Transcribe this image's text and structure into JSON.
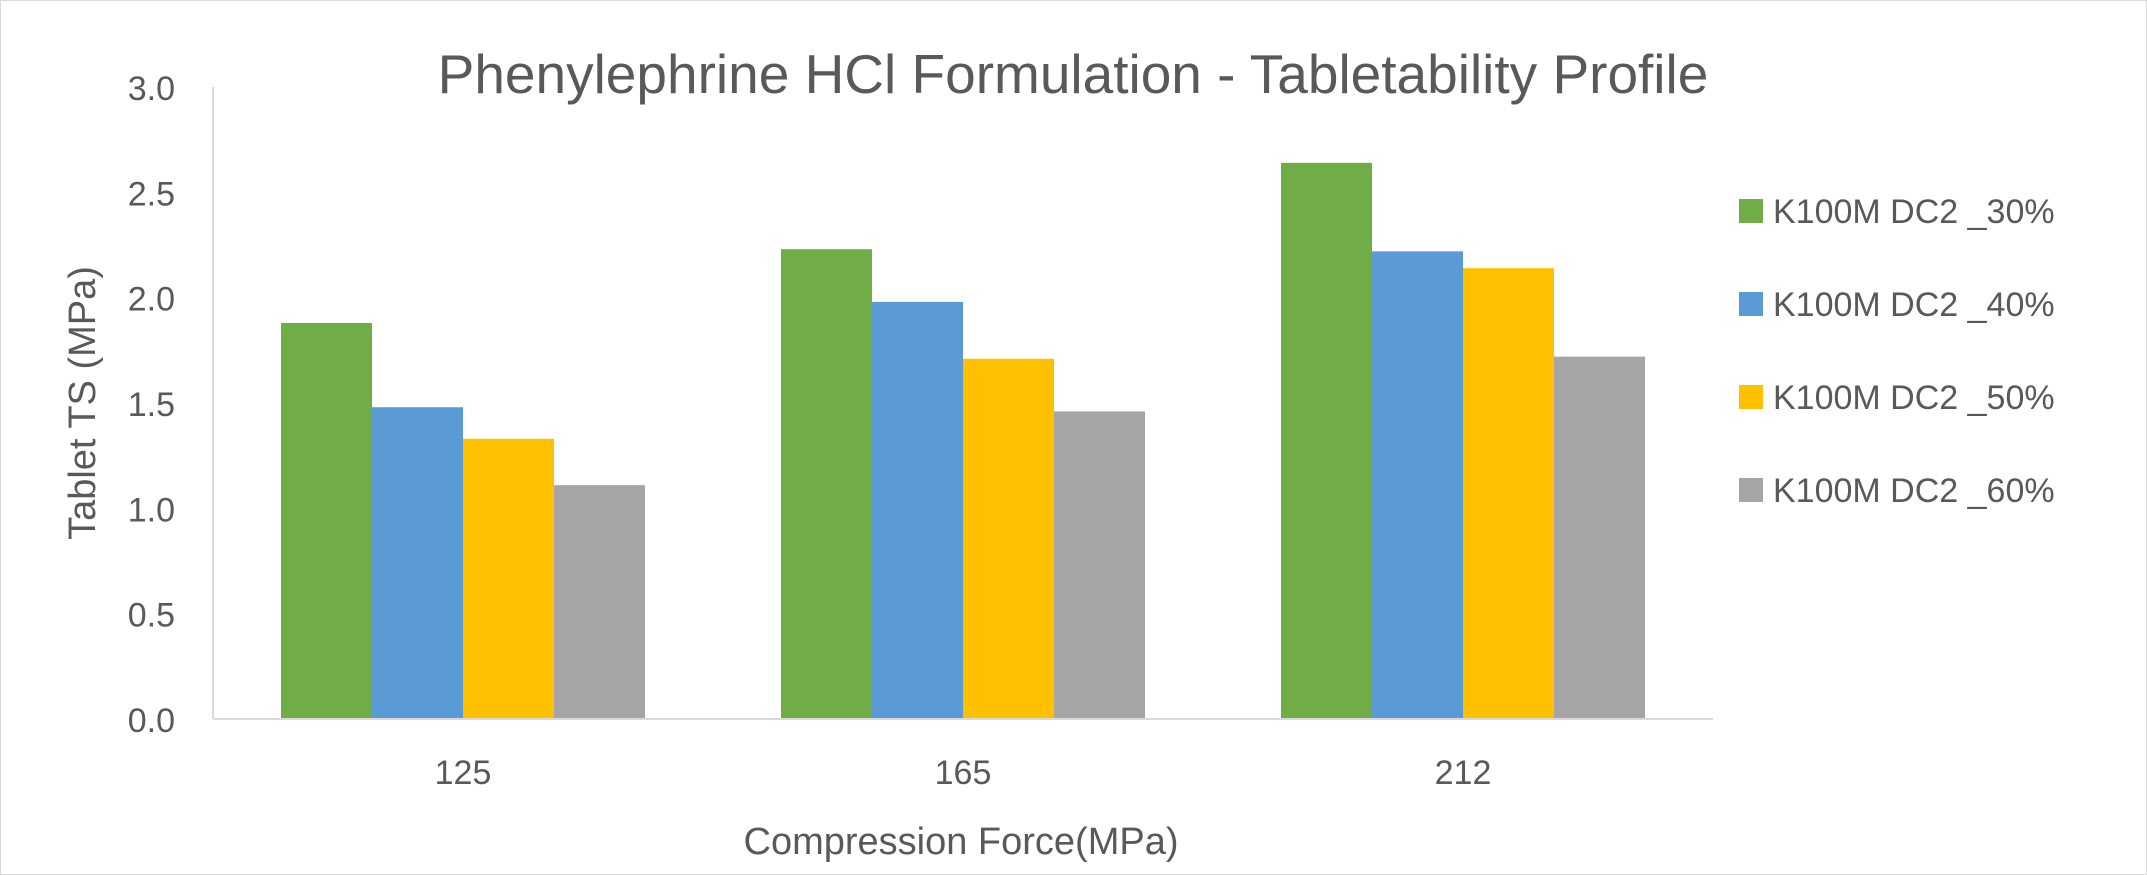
{
  "chart_data": {
    "type": "bar",
    "title": "Phenylephrine HCl Formulation - Tabletability Profile",
    "xlabel": "Compression Force(MPa)",
    "ylabel": "Tablet TS  (MPa)",
    "categories": [
      "125",
      "165",
      "212"
    ],
    "series": [
      {
        "name": "K100M DC2 _30%",
        "color": "#70AD47",
        "values": [
          1.88,
          2.23,
          2.64
        ]
      },
      {
        "name": "K100M DC2 _40%",
        "color": "#5B9BD5",
        "values": [
          1.48,
          1.98,
          2.22
        ]
      },
      {
        "name": "K100M DC2 _50%",
        "color": "#FFC000",
        "values": [
          1.33,
          1.71,
          2.14
        ]
      },
      {
        "name": "K100M DC2 _60%",
        "color": "#A5A5A5",
        "values": [
          1.11,
          1.46,
          1.72
        ]
      }
    ],
    "ylim": [
      0,
      3.0
    ],
    "yticks": [
      "0.0",
      "0.5",
      "1.0",
      "1.5",
      "2.0",
      "2.5",
      "3.0"
    ],
    "grid": false,
    "legend": "right"
  }
}
